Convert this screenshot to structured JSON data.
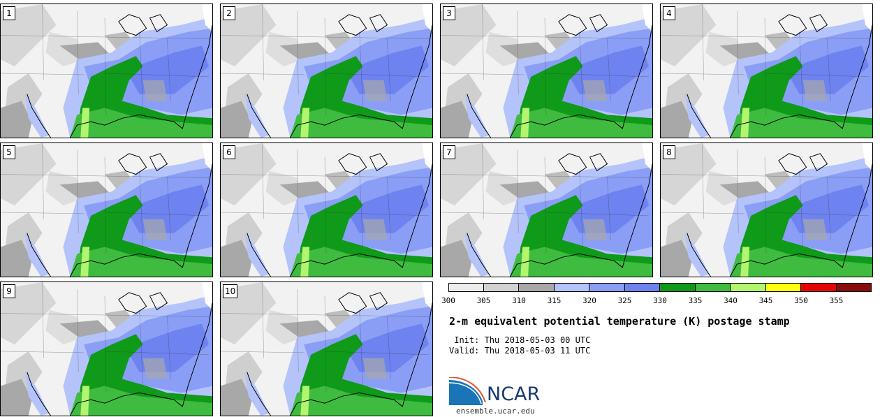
{
  "panels": [
    {
      "label": "1"
    },
    {
      "label": "2"
    },
    {
      "label": "3"
    },
    {
      "label": "4"
    },
    {
      "label": "5"
    },
    {
      "label": "6"
    },
    {
      "label": "7"
    },
    {
      "label": "8"
    },
    {
      "label": "9"
    },
    {
      "label": "10"
    }
  ],
  "colorbar": {
    "colors": [
      "#ececec",
      "#d2d2d2",
      "#a8a8a8",
      "#b4c4fa",
      "#8a9ef6",
      "#6e82f0",
      "#0f9a1a",
      "#3fbb3f",
      "#b3f56e",
      "#ffff12",
      "#e50505",
      "#8a0c0c"
    ],
    "ticks": [
      "300",
      "305",
      "310",
      "315",
      "320",
      "325",
      "330",
      "335",
      "340",
      "345",
      "350",
      "355"
    ]
  },
  "title": "2-m equivalent potential temperature (K) postage stamp",
  "init_text": " Init: Thu 2018-05-03 00 UTC",
  "valid_text": "Valid: Thu 2018-05-03 11 UTC",
  "logo": {
    "text": "NCAR",
    "url": "ensemble.ucar.edu"
  }
}
